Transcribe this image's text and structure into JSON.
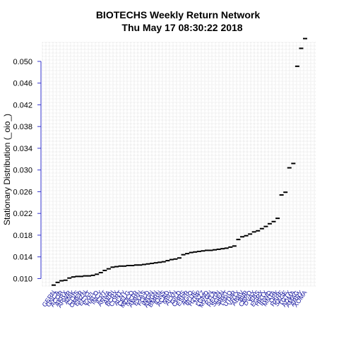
{
  "chart_data": {
    "type": "scatter",
    "title_line1": "BIOTECHS  Weekly Return Network",
    "title_line2": "Thu May 17 08:30:22 2018",
    "xlabel": "",
    "ylabel": "Stationary Distribution (_oio_)",
    "ylim": [
      0.0085,
      0.0535
    ],
    "yticks": [
      "0.010",
      "0.014",
      "0.018",
      "0.022",
      "0.026",
      "0.030",
      "0.034",
      "0.038",
      "0.042",
      "0.046",
      "0.050"
    ],
    "ytick_values": [
      0.01,
      0.014,
      0.018,
      0.022,
      0.026,
      0.03,
      0.034,
      0.038,
      0.042,
      0.046,
      0.05
    ],
    "grid": true,
    "categories": [
      "GERN",
      "GNCA",
      "ACOR",
      "AKRX",
      "ARWR",
      "ANIK",
      "CLVS",
      "OMER",
      "ENZN",
      "ECYT",
      "EXEL",
      "HALO",
      "INCY",
      "ICPT",
      "ARNA",
      "AERI",
      "BCRX",
      "CORT",
      "ALNY",
      "CELG",
      "MDCO",
      "NKTR",
      "AMRN",
      "EXAS",
      "FOLD",
      "IMGN",
      "AMGN",
      "BMRN",
      "IONS",
      "ACAD",
      "NBIX",
      "ALXN",
      "GILD",
      "CHRS",
      "ESPR",
      "AGIO",
      "BLUE",
      "HZNP",
      "JAZZ",
      "LGND",
      "MYGN",
      "PTLA",
      "REGN",
      "SGEN",
      "SRPT",
      "TSRO",
      "UTHR",
      "VRTX",
      "ABBV",
      "BIIB",
      "CBPO",
      "DVAX",
      "EBS",
      "EGRX",
      "HRTX",
      "IRWD",
      "MNTA",
      "OPK",
      "RARE",
      "SAGE",
      "TGTX",
      "ADMA",
      "AMAG",
      "ARRY",
      "XOMA"
    ],
    "values": [
      0.0088,
      0.0093,
      0.0096,
      0.0097,
      0.0101,
      0.0103,
      0.0104,
      0.0104,
      0.0105,
      0.0105,
      0.0106,
      0.0108,
      0.0111,
      0.0115,
      0.0118,
      0.0121,
      0.0122,
      0.0123,
      0.0123,
      0.0124,
      0.0124,
      0.0125,
      0.0125,
      0.0126,
      0.0127,
      0.0128,
      0.0129,
      0.013,
      0.0131,
      0.0133,
      0.0135,
      0.0136,
      0.0138,
      0.0144,
      0.0146,
      0.0148,
      0.0149,
      0.015,
      0.0151,
      0.0152,
      0.0152,
      0.0153,
      0.0154,
      0.0155,
      0.0156,
      0.0158,
      0.016,
      0.0172,
      0.0177,
      0.0179,
      0.0182,
      0.0186,
      0.0188,
      0.0192,
      0.0196,
      0.0201,
      0.0205,
      0.0211,
      0.0254,
      0.0259,
      0.0304,
      0.0312,
      0.0491,
      0.0524,
      0.0542
    ]
  },
  "colors": {
    "axis": "#3333cc",
    "category_label": "#1a1aa0",
    "marker": "#000000",
    "grid": "#cfcfcf"
  }
}
